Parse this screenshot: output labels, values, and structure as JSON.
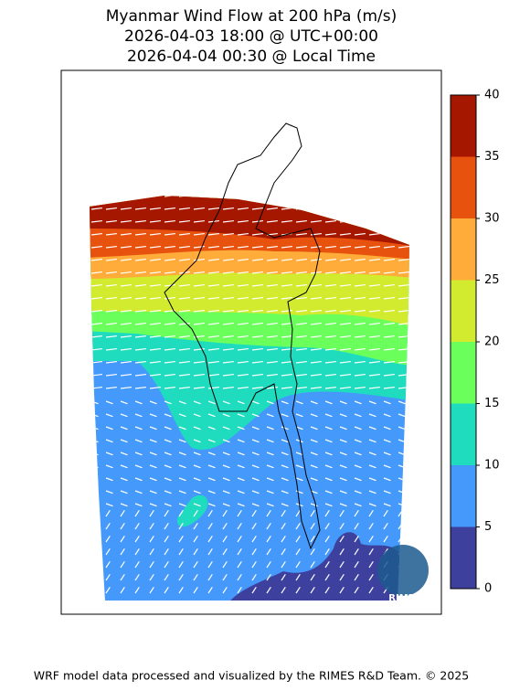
{
  "title": [
    "Myanmar Wind Flow at 200 hPa (m/s)",
    "2026-04-03 18:00 @ UTC+00:00",
    "2026-04-04 00:30 @ Local Time"
  ],
  "colorbar": {
    "ticks": [
      0,
      5,
      10,
      15,
      20,
      25,
      30,
      35,
      40
    ],
    "colors": [
      "#3e409e",
      "#4499fa",
      "#1fdcbf",
      "#6bff5c",
      "#d2eb2e",
      "#ffac3a",
      "#e8520f",
      "#a61700"
    ]
  },
  "logo_text": "RIMES",
  "footer": "WRF model data processed and visualized by the RIMES R&D Team. © 2025"
}
